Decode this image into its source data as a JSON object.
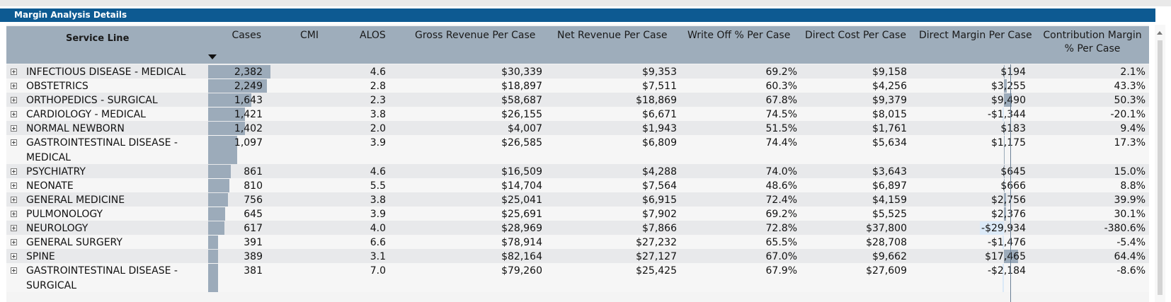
{
  "title": "Margin Analysis Details",
  "columns": [
    {
      "key": "service_line",
      "label": "Service Line"
    },
    {
      "key": "cases",
      "label": "Cases"
    },
    {
      "key": "cmi",
      "label": "CMI"
    },
    {
      "key": "alos",
      "label": "ALOS"
    },
    {
      "key": "gross",
      "label": "Gross Revenue Per Case"
    },
    {
      "key": "net",
      "label": "Net Revenue Per Case"
    },
    {
      "key": "writeoff",
      "label": "Write Off % Per Case"
    },
    {
      "key": "direct_cost",
      "label": "Direct Cost Per Case"
    },
    {
      "key": "direct_margin",
      "label": "Direct Margin Per Case"
    },
    {
      "key": "contrib",
      "label": "Contribution Margin % Per Case"
    }
  ],
  "sort": {
    "column": "cases",
    "direction": "descending"
  },
  "rows": [
    {
      "service_line": "INFECTIOUS DISEASE - MEDICAL",
      "cases": "2,382",
      "cases_value": 2382,
      "alos": "4.6",
      "gross": "$30,339",
      "net": "$9,353",
      "writeoff": "69.2%",
      "direct_cost": "$9,158",
      "direct_margin": "$194",
      "direct_margin_value": 194,
      "contrib": "2.1%"
    },
    {
      "service_line": "OBSTETRICS",
      "cases": "2,249",
      "cases_value": 2249,
      "alos": "2.8",
      "gross": "$18,897",
      "net": "$7,511",
      "writeoff": "60.3%",
      "direct_cost": "$4,256",
      "direct_margin": "$3,255",
      "direct_margin_value": 3255,
      "contrib": "43.3%"
    },
    {
      "service_line": "ORTHOPEDICS - SURGICAL",
      "cases": "1,643",
      "cases_value": 1643,
      "alos": "2.3",
      "gross": "$58,687",
      "net": "$18,869",
      "writeoff": "67.8%",
      "direct_cost": "$9,379",
      "direct_margin": "$9,490",
      "direct_margin_value": 9490,
      "contrib": "50.3%"
    },
    {
      "service_line": "CARDIOLOGY - MEDICAL",
      "cases": "1,421",
      "cases_value": 1421,
      "alos": "3.8",
      "gross": "$26,155",
      "net": "$6,671",
      "writeoff": "74.5%",
      "direct_cost": "$8,015",
      "direct_margin": "-$1,344",
      "direct_margin_value": -1344,
      "contrib": "-20.1%"
    },
    {
      "service_line": "NORMAL NEWBORN",
      "cases": "1,402",
      "cases_value": 1402,
      "alos": "2.0",
      "gross": "$4,007",
      "net": "$1,943",
      "writeoff": "51.5%",
      "direct_cost": "$1,761",
      "direct_margin": "$183",
      "direct_margin_value": 183,
      "contrib": "9.4%"
    },
    {
      "service_line": "GASTROINTESTINAL DISEASE - MEDICAL",
      "cases": "1,097",
      "cases_value": 1097,
      "alos": "3.9",
      "gross": "$26,585",
      "net": "$6,809",
      "writeoff": "74.4%",
      "direct_cost": "$5,634",
      "direct_margin": "$1,175",
      "direct_margin_value": 1175,
      "contrib": "17.3%"
    },
    {
      "service_line": "PSYCHIATRY",
      "cases": "861",
      "cases_value": 861,
      "alos": "4.6",
      "gross": "$16,509",
      "net": "$4,288",
      "writeoff": "74.0%",
      "direct_cost": "$3,643",
      "direct_margin": "$645",
      "direct_margin_value": 645,
      "contrib": "15.0%"
    },
    {
      "service_line": "NEONATE",
      "cases": "810",
      "cases_value": 810,
      "alos": "5.5",
      "gross": "$14,704",
      "net": "$7,564",
      "writeoff": "48.6%",
      "direct_cost": "$6,897",
      "direct_margin": "$666",
      "direct_margin_value": 666,
      "contrib": "8.8%"
    },
    {
      "service_line": "GENERAL MEDICINE",
      "cases": "756",
      "cases_value": 756,
      "alos": "3.8",
      "gross": "$25,041",
      "net": "$6,915",
      "writeoff": "72.4%",
      "direct_cost": "$4,159",
      "direct_margin": "$2,756",
      "direct_margin_value": 2756,
      "contrib": "39.9%"
    },
    {
      "service_line": "PULMONOLOGY",
      "cases": "645",
      "cases_value": 645,
      "alos": "3.9",
      "gross": "$25,691",
      "net": "$7,902",
      "writeoff": "69.2%",
      "direct_cost": "$5,525",
      "direct_margin": "$2,376",
      "direct_margin_value": 2376,
      "contrib": "30.1%"
    },
    {
      "service_line": "NEUROLOGY",
      "cases": "617",
      "cases_value": 617,
      "alos": "4.0",
      "gross": "$28,969",
      "net": "$7,866",
      "writeoff": "72.8%",
      "direct_cost": "$37,800",
      "direct_margin": "-$29,934",
      "direct_margin_value": -29934,
      "contrib": "-380.6%"
    },
    {
      "service_line": "GENERAL SURGERY",
      "cases": "391",
      "cases_value": 391,
      "alos": "6.6",
      "gross": "$78,914",
      "net": "$27,232",
      "writeoff": "65.5%",
      "direct_cost": "$28,708",
      "direct_margin": "-$1,476",
      "direct_margin_value": -1476,
      "contrib": "-5.4%"
    },
    {
      "service_line": "SPINE",
      "cases": "389",
      "cases_value": 389,
      "alos": "3.1",
      "gross": "$82,164",
      "net": "$27,127",
      "writeoff": "67.0%",
      "direct_cost": "$9,662",
      "direct_margin": "$17,465",
      "direct_margin_value": 17465,
      "contrib": "64.4%"
    },
    {
      "service_line": "GASTROINTESTINAL DISEASE - SURGICAL",
      "cases": "381",
      "cases_value": 381,
      "alos": "7.0",
      "gross": "$79,260",
      "net": "$25,425",
      "writeoff": "67.9%",
      "direct_cost": "$27,609",
      "direct_margin": "-$2,184",
      "direct_margin_value": -2184,
      "contrib": "-8.6%"
    }
  ],
  "colors": {
    "title_bar": "#0d5a92",
    "header": "#9eadbb",
    "bar": "#9cabba",
    "negative_bar": "#dbe9f7"
  }
}
